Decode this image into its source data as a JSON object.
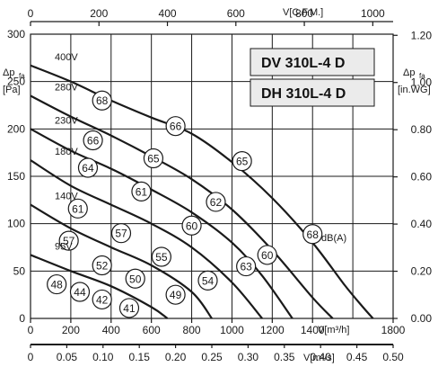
{
  "chart_data": {
    "type": "line",
    "models": [
      "DV 310L-4 D",
      "DH 310L-4 D"
    ],
    "x_axis_bottom": {
      "label": "V[m³/h]",
      "range": [
        0,
        1800
      ],
      "ticks": [
        "0",
        "200",
        "400",
        "600",
        "800",
        "1000",
        "1200",
        "1400",
        "1800"
      ]
    },
    "x_axis_bottom2": {
      "label": "V[m³/s]",
      "ticks": [
        "0",
        "0.05",
        "0.10",
        "0.15",
        "0.20",
        "0.25",
        "0.30",
        "0.35",
        "0.40",
        "0.45",
        "0.50"
      ]
    },
    "x_axis_top": {
      "label": "V[C.F.M.]",
      "ticks": [
        "0",
        "200",
        "400",
        "600",
        "800",
        "1000"
      ]
    },
    "y_axis_left": {
      "label": "Δpfa",
      "label_main": "Δp",
      "label_sub": "fa",
      "unit": "[Pa]",
      "range": [
        0,
        300
      ],
      "ticks": [
        "0",
        "50",
        "100",
        "150",
        "200",
        "250",
        "300"
      ]
    },
    "y_axis_right": {
      "label": "Δpfa",
      "label_main": "Δp",
      "label_sub": "fa",
      "unit": "[in.WG]",
      "ticks": [
        "0.00",
        "0.20",
        "0.40",
        "0.60",
        "0.80",
        "1.00",
        "1.20"
      ]
    },
    "series": [
      {
        "name": "400V",
        "x": [
          0,
          200,
          400,
          600,
          800,
          1000,
          1200,
          1400,
          1560,
          1650,
          1700
        ],
        "y": [
          267,
          250,
          230,
          212,
          195,
          165,
          127,
          80,
          35,
          12,
          0
        ]
      },
      {
        "name": "280V",
        "x": [
          0,
          200,
          400,
          600,
          800,
          1000,
          1200,
          1400,
          1500
        ],
        "y": [
          235,
          213,
          193,
          171,
          147,
          115,
          72,
          22,
          0
        ]
      },
      {
        "name": "230V",
        "x": [
          0,
          200,
          400,
          600,
          800,
          1000,
          1150,
          1300
        ],
        "y": [
          200,
          177,
          158,
          136,
          112,
          80,
          45,
          0
        ]
      },
      {
        "name": "180V",
        "x": [
          0,
          200,
          400,
          600,
          800,
          1000,
          1150
        ],
        "y": [
          167,
          140,
          120,
          100,
          75,
          38,
          0
        ]
      },
      {
        "name": "140V",
        "x": [
          0,
          200,
          400,
          600,
          800,
          900
        ],
        "y": [
          120,
          95,
          75,
          56,
          28,
          0
        ]
      },
      {
        "name": "95V",
        "x": [
          0,
          200,
          400,
          600,
          680
        ],
        "y": [
          67,
          50,
          34,
          12,
          0
        ]
      }
    ],
    "sound_level_markers": [
      {
        "label": "68",
        "x": 355,
        "y": 230
      },
      {
        "label": "66",
        "x": 720,
        "y": 203
      },
      {
        "label": "66",
        "x": 310,
        "y": 188
      },
      {
        "label": "65",
        "x": 610,
        "y": 169
      },
      {
        "label": "65",
        "x": 1050,
        "y": 166
      },
      {
        "label": "64",
        "x": 285,
        "y": 159
      },
      {
        "label": "61",
        "x": 550,
        "y": 134
      },
      {
        "label": "62",
        "x": 920,
        "y": 123
      },
      {
        "label": "61",
        "x": 235,
        "y": 116
      },
      {
        "label": "60",
        "x": 800,
        "y": 98
      },
      {
        "label": "57",
        "x": 450,
        "y": 90
      },
      {
        "label": "57",
        "x": 190,
        "y": 82
      },
      {
        "label": "68",
        "x": 1400,
        "y": 89
      },
      {
        "label": "60",
        "x": 1175,
        "y": 67
      },
      {
        "label": "55",
        "x": 650,
        "y": 65
      },
      {
        "label": "52",
        "x": 355,
        "y": 56
      },
      {
        "label": "63",
        "x": 1070,
        "y": 55
      },
      {
        "label": "50",
        "x": 520,
        "y": 42
      },
      {
        "label": "54",
        "x": 880,
        "y": 40
      },
      {
        "label": "48",
        "x": 130,
        "y": 36
      },
      {
        "label": "44",
        "x": 245,
        "y": 28
      },
      {
        "label": "49",
        "x": 720,
        "y": 25
      },
      {
        "label": "42",
        "x": 355,
        "y": 20
      },
      {
        "label": "41",
        "x": 490,
        "y": 11
      }
    ],
    "units_label": "dB(A)"
  }
}
